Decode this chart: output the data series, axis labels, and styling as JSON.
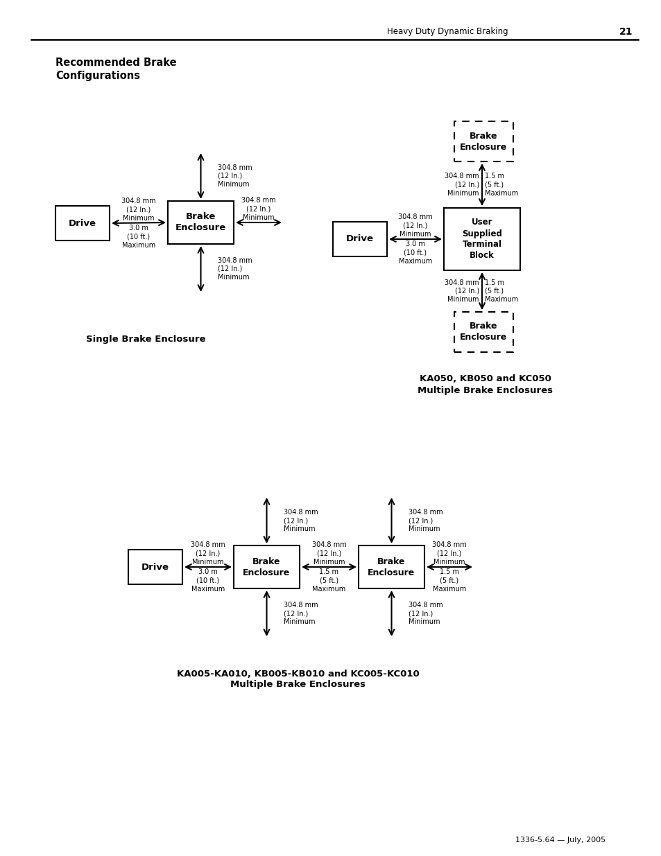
{
  "page_header_text": "Heavy Duty Dynamic Braking",
  "page_number": "21",
  "title": "Recommended Brake\nConfigurations",
  "footer": "1336-5.64 — July, 2005",
  "bg_color": "#ffffff",
  "caption1": "Single Brake Enclosure",
  "caption2": "KA050, KB050 and KC050\nMultiple Brake Enclosures",
  "caption3": "KA005-KA010, KB005-KB010 and KC005-KC010\nMultiple Brake Enclosures",
  "lbl_12in": "304.8 mm\n(12 In.)\nMinimum",
  "lbl_3m": "3.0 m\n(10 ft.)\nMaximum",
  "lbl_15ft_max": "1.5 m\n(5 ft.)\nMaximum",
  "lbl_15ft_min": "304.8 mm\n(12 In.)\nMinimum"
}
